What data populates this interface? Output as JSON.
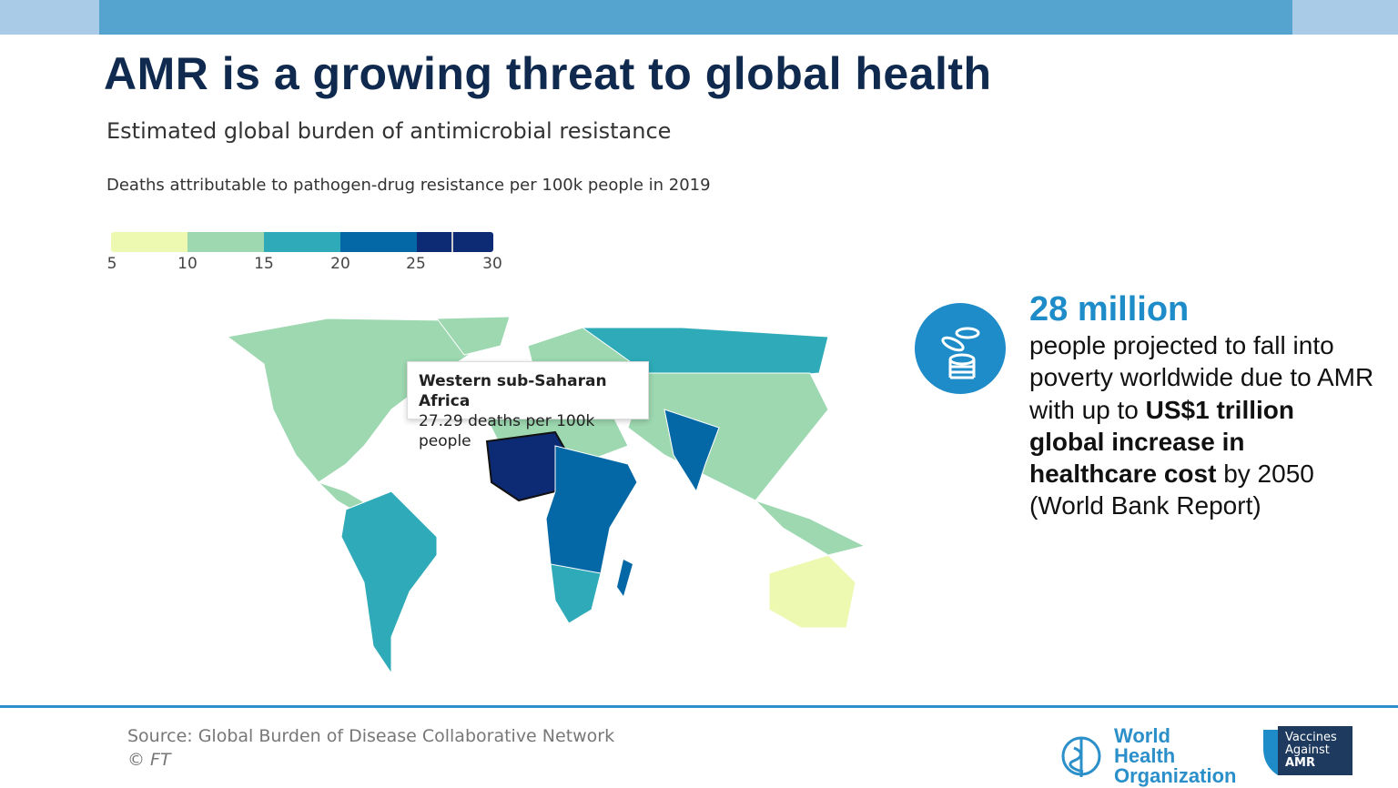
{
  "title": "AMR is a growing threat to global health",
  "subtitle": "Estimated global burden of antimicrobial resistance",
  "map_caption": "Deaths attributable to pathogen-drug resistance per 100k people in 2019",
  "legend": {
    "ticks": [
      "5",
      "10",
      "15",
      "20",
      "25",
      "30"
    ],
    "colors": [
      "#edf8b1",
      "#9dd8b0",
      "#2eaab8",
      "#0568a6",
      "#0d2a75"
    ],
    "marker_value": 27.29
  },
  "tooltip": {
    "region": "Western sub-Saharan Africa",
    "value": "27.29 deaths per 100k people"
  },
  "stat": {
    "headline": "28 million",
    "line1": "people projected to fall into poverty worldwide due to AMR with up to",
    "bold": "US$1 trillion global increase in  healthcare cost",
    "line2": "by 2050",
    "line3": "(World Bank Report)",
    "icon": "coins-icon"
  },
  "footer": {
    "source": "Source: Global Burden of Disease Collaborative Network",
    "copyright": "© FT",
    "who": "World Health Organization",
    "vaa": [
      "Vaccines",
      "Against",
      "AMR"
    ]
  },
  "colors": {
    "title": "#0f2a4e",
    "accent": "#1e8cc8",
    "bar": "#55a4d0"
  }
}
